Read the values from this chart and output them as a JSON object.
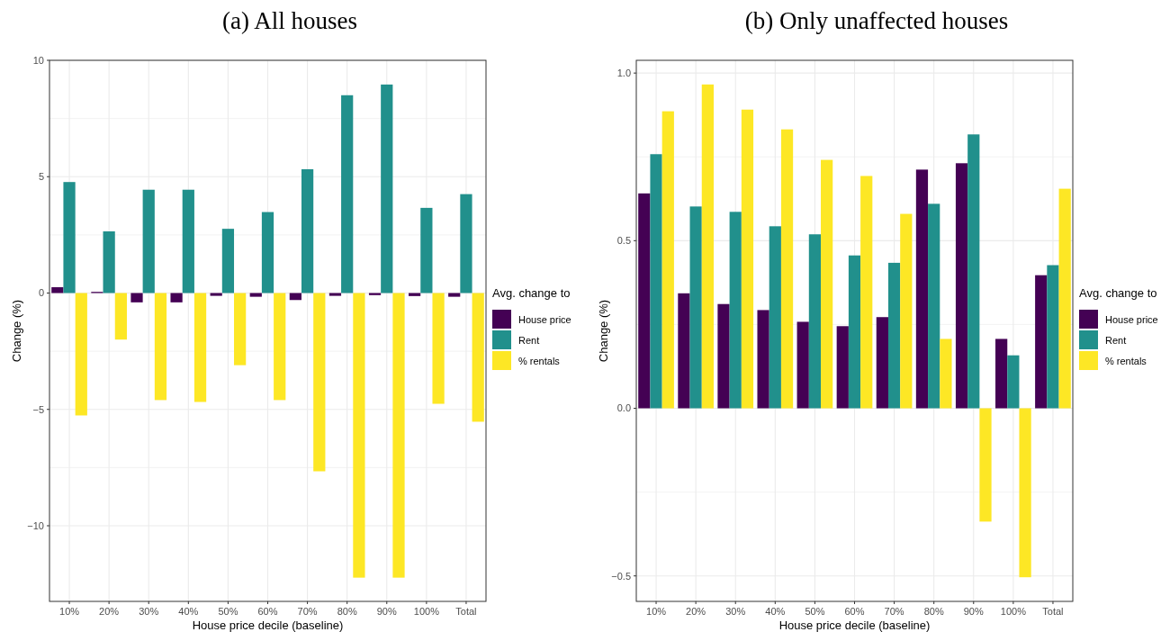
{
  "chart_data": [
    {
      "type": "bar",
      "title": "(a) All houses",
      "xlabel": "House price decile (baseline)",
      "ylabel": "Change (%)",
      "legend_title": "Avg. change to",
      "categories": [
        "10%",
        "20%",
        "30%",
        "40%",
        "50%",
        "60%",
        "70%",
        "80%",
        "90%",
        "100%",
        "Total"
      ],
      "series": [
        {
          "name": "House price",
          "color": "#440154",
          "values": [
            0.25,
            0.05,
            -0.4,
            -0.4,
            -0.12,
            -0.16,
            -0.3,
            -0.12,
            -0.09,
            -0.13,
            -0.16
          ]
        },
        {
          "name": "Rent",
          "color": "#21908c",
          "values": [
            4.77,
            2.65,
            4.44,
            4.44,
            2.76,
            3.48,
            5.32,
            8.5,
            8.96,
            3.66,
            4.25
          ]
        },
        {
          "name": "% rentals",
          "color": "#fde725",
          "values": [
            -5.26,
            -2.0,
            -4.6,
            -4.68,
            -3.1,
            -4.6,
            -7.66,
            -12.23,
            -12.23,
            -4.76,
            -5.53
          ]
        }
      ],
      "ylim": [
        -13.25,
        10
      ],
      "yticks": [
        {
          "value": -10,
          "label": "−10"
        },
        {
          "value": -5,
          "label": "−5"
        },
        0,
        5,
        10
      ],
      "grid": true,
      "legend": "right"
    },
    {
      "type": "bar",
      "title": "(b) Only unaffected houses",
      "xlabel": "House price decile (baseline)",
      "ylabel": "Change (%)",
      "legend_title": "Avg. change to",
      "categories": [
        "10%",
        "20%",
        "30%",
        "40%",
        "50%",
        "60%",
        "70%",
        "80%",
        "90%",
        "100%",
        "Total"
      ],
      "series": [
        {
          "name": "House price",
          "color": "#440154",
          "values": [
            0.641,
            0.343,
            0.311,
            0.293,
            0.258,
            0.245,
            0.272,
            0.712,
            0.731,
            0.207,
            0.397
          ]
        },
        {
          "name": "Rent",
          "color": "#21908c",
          "values": [
            0.758,
            0.602,
            0.586,
            0.543,
            0.519,
            0.456,
            0.434,
            0.61,
            0.817,
            0.158,
            0.427
          ]
        },
        {
          "name": "% rentals",
          "color": "#fde725",
          "values": [
            0.886,
            0.966,
            0.891,
            0.832,
            0.741,
            0.693,
            0.58,
            0.207,
            -0.338,
            -0.504,
            0.655
          ]
        }
      ],
      "ylim": [
        -0.576,
        1.038
      ],
      "yticks": [
        {
          "value": -0.5,
          "label": "−0.5"
        },
        {
          "value": 0,
          "label": "0.0"
        },
        {
          "value": 0.5,
          "label": "0.5"
        },
        {
          "value": 1,
          "label": "1.0"
        }
      ],
      "grid": true,
      "legend": "right"
    }
  ]
}
